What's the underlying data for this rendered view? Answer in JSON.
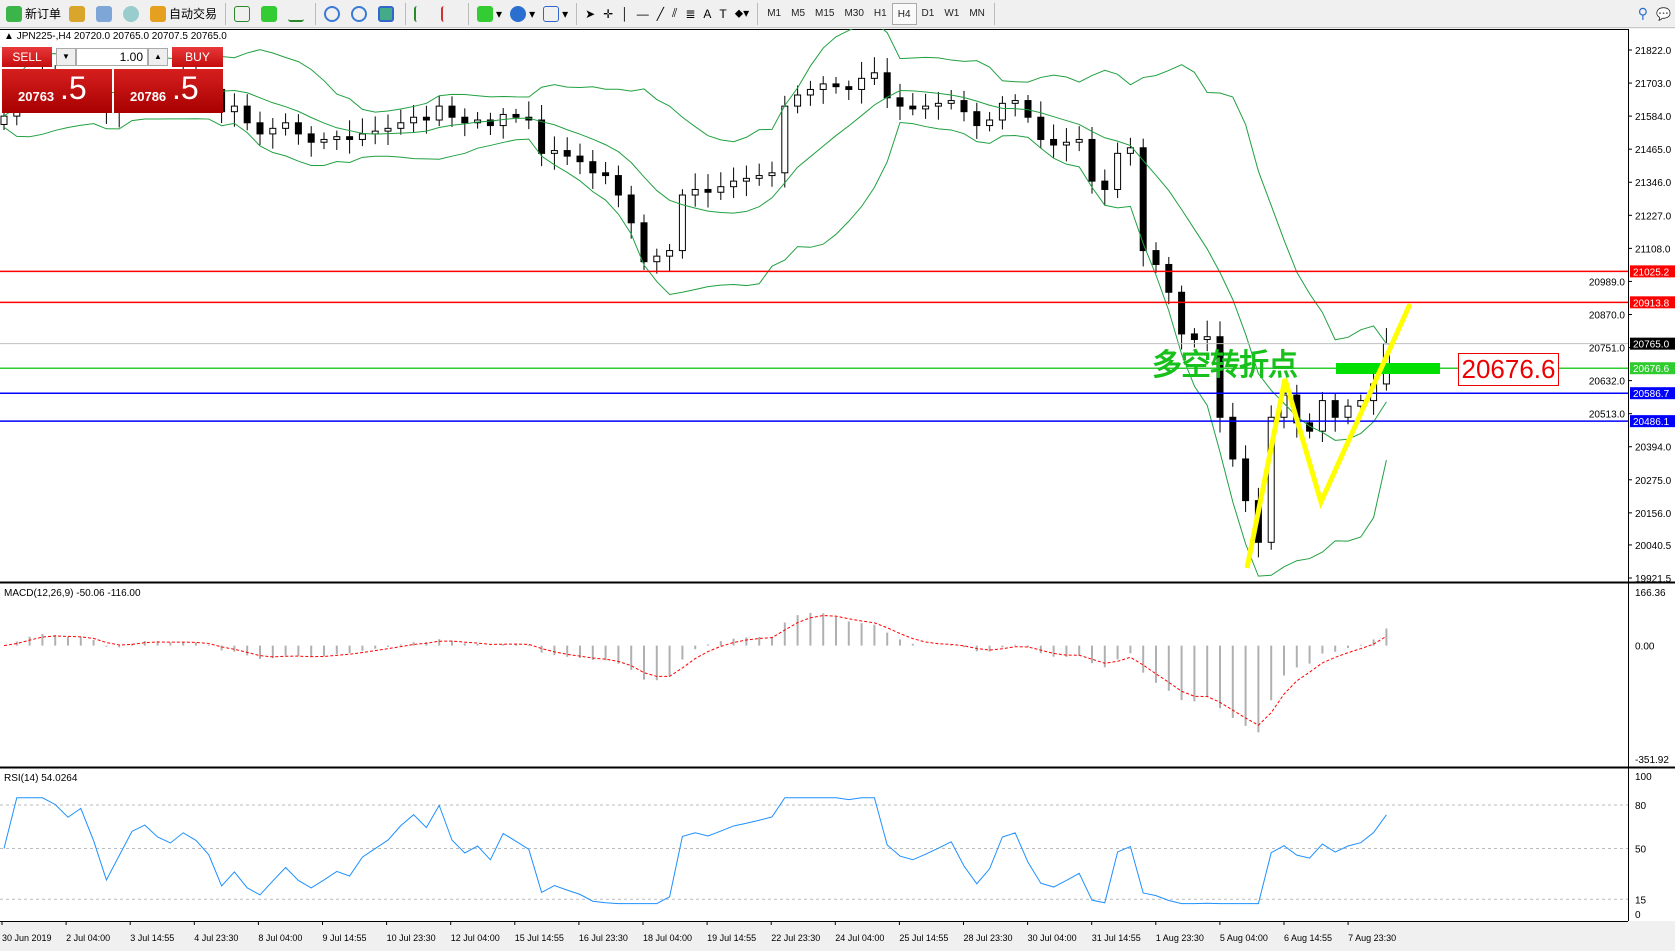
{
  "toolbar": {
    "new_order": "新订单",
    "auto_trading": "自动交易",
    "timeframes": [
      "M1",
      "M5",
      "M15",
      "M30",
      "H1",
      "H4",
      "D1",
      "W1",
      "MN"
    ],
    "active_timeframe": "H4",
    "icons": [
      "new-order-icon",
      "history-icon",
      "market-watch-icon",
      "signal-icon",
      "auto-trading-icon",
      "bar-chart-icon",
      "candlestick-icon",
      "line-chart-icon",
      "zoom-in-icon",
      "zoom-out-icon",
      "tile-windows-icon",
      "auto-scroll-icon",
      "chart-shift-icon",
      "indicators-icon",
      "periods-icon",
      "templates-icon",
      "cursor-icon",
      "crosshair-icon",
      "vertical-line-icon",
      "horizontal-line-icon",
      "trendline-icon",
      "equidistant-channel-icon",
      "fibonacci-icon",
      "text-icon",
      "text-label-icon",
      "arrows-icon",
      "search-icon",
      "chat-icon"
    ]
  },
  "chart": {
    "header": "JPN225-,H4  20720.0 20765.0 20707.5 20765.0"
  },
  "trade_panel": {
    "sell_label": "SELL",
    "buy_label": "BUY",
    "volume": "1.00",
    "sell_big": "20763",
    "sell_small": ".5",
    "buy_big": "20786",
    "buy_small": ".5"
  },
  "indicators": {
    "macd_label": "MACD(12,26,9) -50.06 -116.00",
    "rsi_label": "RSI(14) 54.0264"
  },
  "annotation": {
    "text": "多空转折点",
    "price_box": "20676.6"
  },
  "chart_data": {
    "type": "candlestick",
    "symbol": "JPN225-",
    "timeframe": "H4",
    "closes": [
      21584,
      21650,
      21700,
      21720,
      21700,
      21690,
      21710,
      21680,
      21600,
      21640,
      21700,
      21720,
      21700,
      21690,
      21710,
      21700,
      21680,
      21600,
      21620,
      21560,
      21520,
      21540,
      21560,
      21520,
      21490,
      21500,
      21510,
      21500,
      21520,
      21530,
      21540,
      21560,
      21580,
      21570,
      21620,
      21580,
      21560,
      21570,
      21550,
      21590,
      21580,
      21570,
      21450,
      21460,
      21440,
      21420,
      21380,
      21370,
      21300,
      21200,
      21060,
      21080,
      21100,
      21300,
      21320,
      21310,
      21330,
      21350,
      21360,
      21370,
      21380,
      21620,
      21660,
      21680,
      21700,
      21690,
      21680,
      21720,
      21740,
      21650,
      21620,
      21610,
      21620,
      21630,
      21640,
      21600,
      21550,
      21570,
      21630,
      21640,
      21580,
      21500,
      21480,
      21490,
      21500,
      21350,
      21320,
      21450,
      21470,
      21100,
      21050,
      20950,
      20800,
      20780,
      20790,
      20500,
      20350,
      20200,
      20050,
      20500,
      20580,
      20480,
      20450,
      20560,
      20500,
      20540,
      20560,
      20620,
      20765
    ],
    "price_ticks": [
      "21822.0",
      "21703.0",
      "21584.0",
      "21465.0",
      "21346.0",
      "21227.0",
      "21108.0",
      "20989.0",
      "20870.0",
      "20751.0",
      "20632.0",
      "20513.0",
      "20394.0",
      "20275.0",
      "20156.0",
      "20040.5",
      "19921.5"
    ],
    "price_range": [
      19921.5,
      21822.0
    ],
    "lines": [
      {
        "price": "21025.2",
        "color": "#ff0000"
      },
      {
        "price": "20913.8",
        "color": "#ff0000"
      },
      {
        "price": "20765.0",
        "color": "#c0c0c0",
        "label_bg": "#000000"
      },
      {
        "price": "20676.6",
        "color": "#2ecc2e"
      },
      {
        "price": "20586.7",
        "color": "#0000ff"
      },
      {
        "price": "20486.1",
        "color": "#0000ff"
      }
    ],
    "macd_ticks": [
      "166.36",
      "0.00",
      "-351.92"
    ],
    "macd_range": [
      -351.92,
      166.36
    ],
    "rsi_ticks": [
      "100",
      "80",
      "50",
      "15",
      "0"
    ],
    "time_labels": [
      "30 Jun 2019",
      "2 Jul 04:00",
      "3 Jul 14:55",
      "4 Jul 23:30",
      "8 Jul 04:00",
      "9 Jul 14:55",
      "10 Jul 23:30",
      "12 Jul 04:00",
      "15 Jul 14:55",
      "16 Jul 23:30",
      "18 Jul 04:00",
      "19 Jul 14:55",
      "22 Jul 23:30",
      "24 Jul 04:00",
      "25 Jul 14:55",
      "28 Jul 23:30",
      "30 Jul 04:00",
      "31 Jul 14:55",
      "1 Aug 23:30",
      "5 Aug 04:00",
      "6 Aug 14:55",
      "7 Aug 23:30"
    ],
    "colors": {
      "bands": "#20a040",
      "macd_signal": "#ff0000",
      "macd_hist": "#b0b0b0",
      "rsi": "#1e90ff",
      "zigzag": "#ffff00"
    }
  }
}
